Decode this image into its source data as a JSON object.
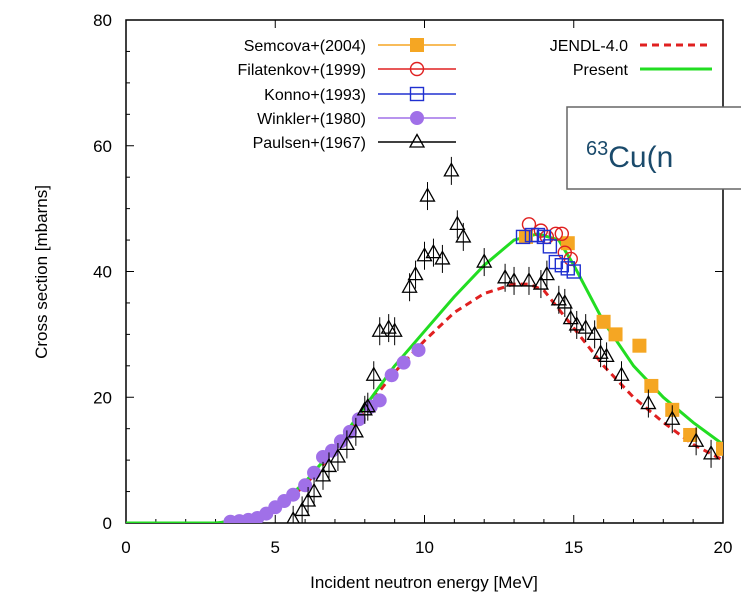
{
  "chart_data": {
    "type": "scatter",
    "title": "",
    "xlabel": "Incident neutron energy [MeV]",
    "ylabel": "Cross section [mbarns]",
    "xlim": [
      0,
      20
    ],
    "ylim": [
      0,
      80
    ],
    "x_ticks": [
      "0",
      "5",
      "10",
      "15",
      "20"
    ],
    "y_ticks": [
      "0",
      "20",
      "40",
      "60",
      "80"
    ],
    "grid": false,
    "legend_placement": "top",
    "annotation": {
      "sup": "63",
      "text": "Cu(n"
    },
    "series": [
      {
        "name": "Semcova+(2004)",
        "kind": "points",
        "marker": "square-filled",
        "color": "#f5a623",
        "points": [
          [
            13.4,
            45.5
          ],
          [
            14.8,
            44.5
          ],
          [
            16.0,
            32.0
          ],
          [
            16.4,
            30.0
          ],
          [
            17.2,
            28.2
          ],
          [
            17.6,
            21.8
          ],
          [
            18.3,
            18.0
          ],
          [
            18.9,
            14.0
          ],
          [
            20.0,
            11.8
          ]
        ]
      },
      {
        "name": "Filatenkov+(1999)",
        "kind": "points",
        "marker": "circle-open",
        "color": "#e02020",
        "points": [
          [
            13.5,
            47.5
          ],
          [
            13.9,
            46.5
          ],
          [
            14.1,
            45.5
          ],
          [
            14.4,
            46.0
          ],
          [
            14.6,
            46.0
          ],
          [
            14.7,
            43.0
          ],
          [
            14.9,
            42.0
          ]
        ]
      },
      {
        "name": "Konno+(1993)",
        "kind": "points",
        "marker": "square-open",
        "color": "#2030d0",
        "points": [
          [
            13.3,
            45.5
          ],
          [
            13.6,
            45.8
          ],
          [
            13.8,
            45.8
          ],
          [
            14.0,
            45.5
          ],
          [
            14.2,
            44.0
          ],
          [
            14.4,
            41.5
          ],
          [
            14.6,
            41.0
          ],
          [
            14.8,
            40.5
          ],
          [
            15.0,
            40.0
          ]
        ]
      },
      {
        "name": "Winkler+(1980)",
        "kind": "points",
        "marker": "circle-filled",
        "color": "#a070e8",
        "points": [
          [
            3.5,
            0.2
          ],
          [
            3.8,
            0.3
          ],
          [
            4.1,
            0.5
          ],
          [
            4.4,
            0.8
          ],
          [
            4.7,
            1.5
          ],
          [
            5.0,
            2.5
          ],
          [
            5.3,
            3.5
          ],
          [
            5.6,
            4.5
          ],
          [
            6.0,
            6.0
          ],
          [
            6.3,
            8.0
          ],
          [
            6.6,
            10.5
          ],
          [
            6.9,
            11.5
          ],
          [
            7.2,
            13.0
          ],
          [
            7.5,
            14.5
          ],
          [
            7.8,
            16.5
          ],
          [
            8.2,
            18.5
          ],
          [
            8.5,
            19.5
          ],
          [
            8.9,
            23.5
          ],
          [
            9.3,
            25.5
          ],
          [
            9.8,
            27.5
          ]
        ]
      },
      {
        "name": "Paulsen+(1967)",
        "kind": "points",
        "marker": "triangle-open",
        "color": "#000000",
        "points": [
          [
            5.6,
            0.5
          ],
          [
            5.9,
            2.0
          ],
          [
            6.1,
            3.5
          ],
          [
            6.3,
            5.0
          ],
          [
            6.6,
            7.5
          ],
          [
            6.8,
            9.0
          ],
          [
            7.1,
            10.5
          ],
          [
            7.4,
            12.5
          ],
          [
            7.7,
            14.5
          ],
          [
            8.0,
            18.0
          ],
          [
            8.1,
            18.5
          ],
          [
            8.3,
            23.5
          ],
          [
            8.5,
            30.5
          ],
          [
            8.8,
            31.0
          ],
          [
            9.0,
            30.5
          ],
          [
            9.5,
            37.5
          ],
          [
            9.7,
            39.5
          ],
          [
            10.0,
            42.5
          ],
          [
            10.1,
            52.0
          ],
          [
            10.3,
            43.0
          ],
          [
            10.6,
            42.0
          ],
          [
            10.9,
            56.0
          ],
          [
            11.1,
            47.5
          ],
          [
            11.3,
            45.5
          ],
          [
            12.0,
            41.5
          ],
          [
            12.7,
            39.0
          ],
          [
            13.0,
            38.5
          ],
          [
            13.5,
            38.5
          ],
          [
            13.9,
            38.0
          ],
          [
            14.1,
            39.5
          ],
          [
            14.5,
            35.5
          ],
          [
            14.7,
            35.0
          ],
          [
            14.9,
            32.5
          ],
          [
            15.1,
            31.5
          ],
          [
            15.4,
            31.0
          ],
          [
            15.7,
            30.0
          ],
          [
            15.9,
            27.0
          ],
          [
            16.1,
            26.5
          ],
          [
            16.6,
            23.5
          ],
          [
            17.5,
            19.0
          ],
          [
            18.3,
            16.5
          ],
          [
            19.1,
            13.0
          ],
          [
            19.6,
            11.0
          ]
        ]
      },
      {
        "name": "JENDL-4.0",
        "kind": "line",
        "style": "dashed",
        "color": "#e02020",
        "points": [
          [
            0,
            0
          ],
          [
            3,
            0
          ],
          [
            4,
            0.5
          ],
          [
            5,
            2
          ],
          [
            6,
            6
          ],
          [
            7,
            11.5
          ],
          [
            8,
            18
          ],
          [
            9,
            24
          ],
          [
            10,
            29
          ],
          [
            11,
            33.5
          ],
          [
            12,
            36.5
          ],
          [
            13,
            38
          ],
          [
            13.5,
            38
          ],
          [
            14,
            37
          ],
          [
            15,
            31
          ],
          [
            16,
            25
          ],
          [
            17,
            20
          ],
          [
            18,
            16
          ],
          [
            19,
            12.5
          ],
          [
            20,
            10
          ]
        ]
      },
      {
        "name": "Present",
        "kind": "line",
        "style": "solid",
        "color": "#22dd22",
        "points": [
          [
            0,
            0
          ],
          [
            3,
            0
          ],
          [
            4,
            0.5
          ],
          [
            5,
            2.3
          ],
          [
            6,
            6.5
          ],
          [
            7,
            12
          ],
          [
            8,
            18.5
          ],
          [
            9,
            25
          ],
          [
            10,
            30.5
          ],
          [
            11,
            36
          ],
          [
            12,
            41
          ],
          [
            13,
            45
          ],
          [
            13.8,
            46
          ],
          [
            14.5,
            45
          ],
          [
            15,
            41
          ],
          [
            16,
            32
          ],
          [
            17,
            25
          ],
          [
            18,
            20
          ],
          [
            19,
            16
          ],
          [
            20,
            12.5
          ]
        ]
      }
    ]
  }
}
